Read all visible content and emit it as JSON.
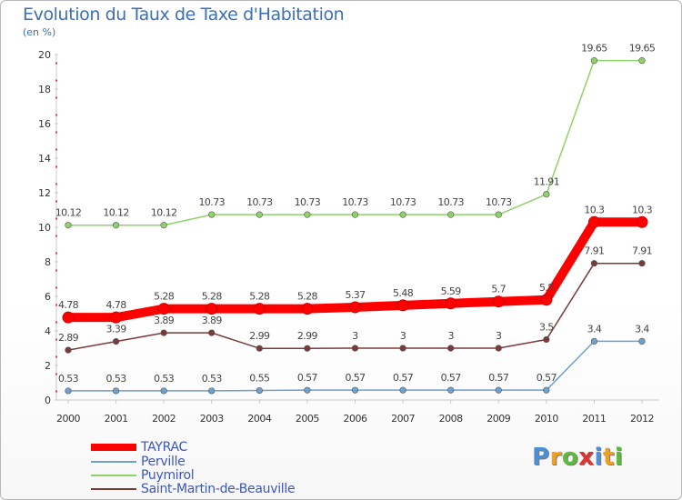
{
  "chart_data": {
    "type": "line",
    "title": "Evolution du Taux de Taxe d'Habitation",
    "subtitle": "(en %)",
    "x": [
      "2000",
      "2001",
      "2002",
      "2003",
      "2004",
      "2005",
      "2006",
      "2007",
      "2008",
      "2009",
      "2010",
      "2011",
      "2012"
    ],
    "ylim": [
      0,
      20
    ],
    "yticks": [
      "0",
      "2",
      "4",
      "6",
      "8",
      "10",
      "12",
      "14",
      "16",
      "18",
      "20"
    ],
    "grid": false,
    "legend_position": "bottom-left",
    "series": [
      {
        "name": "TAYRAC",
        "color": "#ff0000",
        "values": [
          4.78,
          4.78,
          5.28,
          5.28,
          5.28,
          5.28,
          5.37,
          5.48,
          5.59,
          5.7,
          5.8,
          10.3,
          10.3
        ],
        "labels": [
          "4.78",
          "4.78",
          "5.28",
          "5.28",
          "5.28",
          "5.28",
          "5.37",
          "5.48",
          "5.59",
          "5.7",
          "5.8",
          "10.3",
          "10.3"
        ]
      },
      {
        "name": "Perville",
        "color": "#6fa0cf",
        "values": [
          0.53,
          0.53,
          0.53,
          0.53,
          0.55,
          0.57,
          0.57,
          0.57,
          0.57,
          0.57,
          0.57,
          3.4,
          3.4
        ],
        "labels": [
          "0.53",
          "0.53",
          "0.53",
          "0.53",
          "0.55",
          "0.57",
          "0.57",
          "0.57",
          "0.57",
          "0.57",
          "0.57",
          "3.4",
          "3.4"
        ]
      },
      {
        "name": "Puymirol",
        "color": "#8fd16a",
        "values": [
          10.12,
          10.12,
          10.12,
          10.73,
          10.73,
          10.73,
          10.73,
          10.73,
          10.73,
          10.73,
          11.91,
          19.65,
          19.65
        ],
        "labels": [
          "10.12",
          "10.12",
          "10.12",
          "10.73",
          "10.73",
          "10.73",
          "10.73",
          "10.73",
          "10.73",
          "10.73",
          "11.91",
          "19.65",
          "19.65"
        ]
      },
      {
        "name": "Saint-Martin-de-Beauville",
        "color": "#7b3a3a",
        "values": [
          2.89,
          3.39,
          3.89,
          3.89,
          2.99,
          2.99,
          3,
          3,
          3,
          3,
          3.5,
          7.91,
          7.91
        ],
        "labels": [
          "2.89",
          "3.39",
          "3.89",
          "3.89",
          "2.99",
          "2.99",
          "3",
          "3",
          "3",
          "3",
          "3.5",
          "7.91",
          "7.91"
        ]
      }
    ]
  },
  "logo": {
    "text": "Proxiti",
    "letters": [
      "P",
      "r",
      "o",
      "x",
      "i",
      "t",
      "i"
    ],
    "colors": [
      "#4a8fd8",
      "#f0a020",
      "#5cba3c",
      "#e03030",
      "#4a8fd8",
      "#f0a020",
      "#5cba3c"
    ]
  }
}
